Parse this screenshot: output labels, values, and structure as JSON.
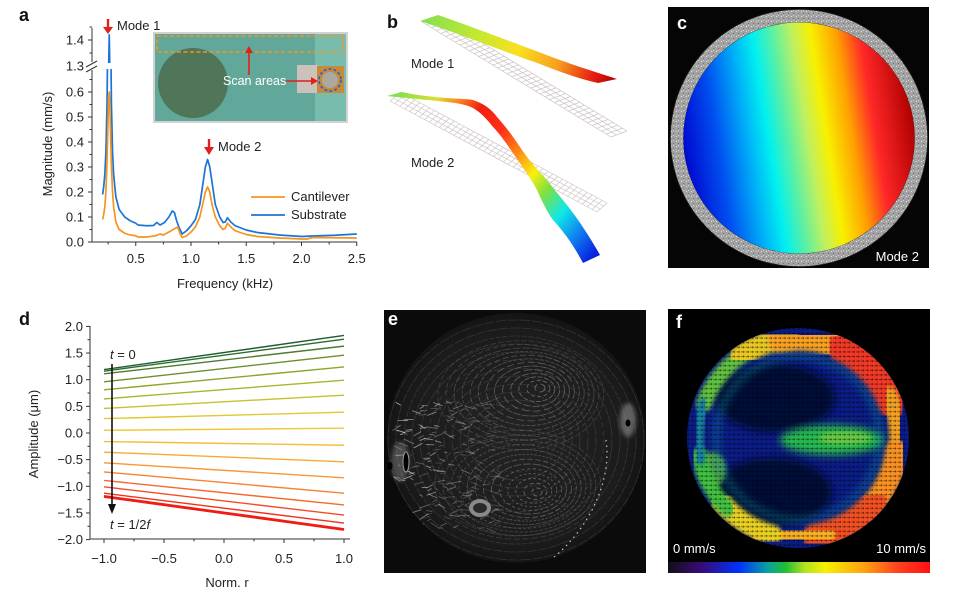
{
  "panels": {
    "a": {
      "label": "a",
      "mode1": "Mode 1",
      "mode2": "Mode 2",
      "inset_label": "Scan areas"
    },
    "b": {
      "label": "b",
      "mode1": "Mode 1",
      "mode2": "Mode 2"
    },
    "c": {
      "label": "c",
      "mode": "Mode 2"
    },
    "d": {
      "label": "d",
      "t_start": {
        "var": "t",
        "rest": " = 0"
      },
      "t_end": {
        "var": "t",
        "mid": " = 1/2",
        "var2": "f"
      }
    },
    "e": {
      "label": "e"
    },
    "f": {
      "label": "f",
      "colorbar_min": "0 mm/s",
      "colorbar_max": "10 mm/s",
      "colorbar_range_mm_s": [
        0,
        10
      ]
    }
  },
  "colors": {
    "cantilever": "#f7941d",
    "substrate": "#1b75d8",
    "annotation_arrow": "#e0201a",
    "colormap": [
      "#101018",
      "#3a0a70",
      "#0030ff",
      "#0aa0a0",
      "#20c030",
      "#b0e020",
      "#f8f000",
      "#ffa010",
      "#ff4020",
      "#ff1010"
    ]
  },
  "chart_data": [
    {
      "id": "a",
      "type": "line",
      "title": "",
      "xlabel": "Frequency (kHz)",
      "ylabel": "Magnitude (mm/s)",
      "xlim": [
        0.1,
        2.5
      ],
      "y_axis_break": true,
      "ylim_lower": [
        0.0,
        0.69
      ],
      "ylim_upper": [
        1.31,
        1.45
      ],
      "xticks": [
        0.5,
        1.0,
        1.5,
        2.0,
        2.5
      ],
      "xtick_labels": [
        "0.5",
        "1.0",
        "1.5",
        "2.0",
        "2.5"
      ],
      "yticks_lower": [
        0.0,
        0.1,
        0.2,
        0.3,
        0.4,
        0.5,
        0.6
      ],
      "ytick_labels_lower": [
        "0.0",
        "0.1",
        "0.2",
        "0.3",
        "0.4",
        "0.5",
        "0.6"
      ],
      "yticks_upper": [
        1.3,
        1.4
      ],
      "ytick_labels_upper": [
        "1.3",
        "1.4"
      ],
      "grid": false,
      "legend": {
        "position": "right",
        "entries": [
          "Cantilever",
          "Substrate"
        ]
      },
      "annotations": [
        {
          "text": "Mode 1",
          "x": 0.26
        },
        {
          "text": "Mode 2",
          "x": 1.15
        }
      ],
      "series": [
        {
          "name": "Substrate",
          "color": "#1b75d8",
          "x": [
            0.2,
            0.21,
            0.22,
            0.23,
            0.24,
            0.245,
            0.25,
            0.255,
            0.26,
            0.265,
            0.27,
            0.275,
            0.28,
            0.29,
            0.3,
            0.32,
            0.35,
            0.4,
            0.45,
            0.5,
            0.52,
            0.6,
            0.66,
            0.69,
            0.72,
            0.76,
            0.8,
            0.83,
            0.85,
            0.87,
            0.89,
            0.92,
            0.96,
            1.0,
            1.04,
            1.08,
            1.11,
            1.13,
            1.15,
            1.17,
            1.19,
            1.22,
            1.26,
            1.29,
            1.31,
            1.33,
            1.36,
            1.4,
            1.5,
            1.6,
            1.8,
            2.0,
            2.1,
            2.3,
            2.5
          ],
          "y": [
            0.19,
            0.22,
            0.27,
            0.36,
            0.55,
            0.75,
            1.0,
            1.3,
            1.42,
            1.3,
            1.0,
            0.75,
            0.55,
            0.36,
            0.27,
            0.18,
            0.13,
            0.1,
            0.085,
            0.075,
            0.068,
            0.065,
            0.066,
            0.078,
            0.068,
            0.078,
            0.1,
            0.124,
            0.118,
            0.085,
            0.06,
            0.032,
            0.045,
            0.065,
            0.09,
            0.15,
            0.24,
            0.3,
            0.33,
            0.3,
            0.24,
            0.15,
            0.1,
            0.078,
            0.08,
            0.097,
            0.08,
            0.065,
            0.048,
            0.038,
            0.028,
            0.022,
            0.024,
            0.027,
            0.032
          ]
        },
        {
          "name": "Cantilever",
          "color": "#f7941d",
          "x": [
            0.2,
            0.21,
            0.22,
            0.23,
            0.24,
            0.25,
            0.255,
            0.26,
            0.265,
            0.27,
            0.28,
            0.29,
            0.3,
            0.32,
            0.35,
            0.4,
            0.45,
            0.5,
            0.52,
            0.6,
            0.68,
            0.72,
            0.75,
            0.8,
            0.84,
            0.86,
            0.88,
            0.9,
            0.92,
            0.96,
            1.0,
            1.04,
            1.08,
            1.11,
            1.13,
            1.15,
            1.17,
            1.19,
            1.22,
            1.26,
            1.29,
            1.31,
            1.33,
            1.36,
            1.4,
            1.5,
            1.6,
            1.8,
            2.0,
            2.05,
            2.1,
            2.3,
            2.5
          ],
          "y": [
            0.09,
            0.11,
            0.14,
            0.2,
            0.32,
            0.5,
            0.58,
            0.6,
            0.56,
            0.46,
            0.3,
            0.2,
            0.14,
            0.08,
            0.05,
            0.035,
            0.028,
            0.025,
            0.02,
            0.02,
            0.025,
            0.032,
            0.028,
            0.04,
            0.05,
            0.055,
            0.06,
            0.035,
            0.018,
            0.024,
            0.04,
            0.06,
            0.1,
            0.16,
            0.2,
            0.22,
            0.2,
            0.15,
            0.1,
            0.065,
            0.05,
            0.055,
            0.075,
            0.06,
            0.045,
            0.03,
            0.022,
            0.016,
            0.012,
            0.012,
            0.018,
            0.017,
            0.016
          ]
        }
      ]
    },
    {
      "id": "d",
      "type": "line",
      "title": "",
      "xlabel": "Norm. r",
      "ylabel": "Amplitude (μm)",
      "xlim": [
        -1.12,
        1.05
      ],
      "ylim": [
        -2.0,
        2.0
      ],
      "xticks": [
        -1.0,
        -0.5,
        0.0,
        0.5,
        1.0
      ],
      "xtick_labels": [
        "−1.0",
        "−0.5",
        "0.0",
        "0.5",
        "1.0"
      ],
      "yticks": [
        2.0,
        1.5,
        1.0,
        0.5,
        0.0,
        -0.5,
        -1.0,
        -1.5,
        -2.0
      ],
      "ytick_labels": [
        "2.0",
        "1.5",
        "1.0",
        "0.5",
        "0.0",
        "−0.5",
        "−1.0",
        "−1.5",
        "−2.0"
      ],
      "grid": false,
      "annotations": [
        {
          "text": "t = 0",
          "x": -0.93,
          "y": 1.45
        },
        {
          "text": "t = 1/2f",
          "x": -0.93,
          "y": -1.75
        }
      ],
      "series": [
        {
          "name": "t_step_0",
          "color": "#1f5c32",
          "x": [
            -1,
            1
          ],
          "y": [
            1.19,
            1.83
          ]
        },
        {
          "name": "t_step_1",
          "color": "#2e6b2e",
          "x": [
            -1,
            1
          ],
          "y": [
            1.16,
            1.76
          ]
        },
        {
          "name": "t_step_2",
          "color": "#4b7d2c",
          "x": [
            -1,
            1
          ],
          "y": [
            1.11,
            1.63
          ]
        },
        {
          "name": "t_step_3",
          "color": "#6d8f2a",
          "x": [
            -1,
            1
          ],
          "y": [
            0.96,
            1.46
          ]
        },
        {
          "name": "t_step_4",
          "color": "#8fa52a",
          "x": [
            -1,
            1
          ],
          "y": [
            0.81,
            1.24
          ]
        },
        {
          "name": "t_step_5",
          "color": "#a9b52c",
          "x": [
            -1,
            1
          ],
          "y": [
            0.64,
            0.99
          ]
        },
        {
          "name": "t_step_6",
          "color": "#c6c12e",
          "x": [
            -1,
            1
          ],
          "y": [
            0.46,
            0.71
          ]
        },
        {
          "name": "t_step_7",
          "color": "#e0c832",
          "x": [
            -1,
            1
          ],
          "y": [
            0.27,
            0.39
          ]
        },
        {
          "name": "t_step_8",
          "color": "#f0c83a",
          "x": [
            -1,
            1
          ],
          "y": [
            0.05,
            0.09
          ]
        },
        {
          "name": "t_step_9",
          "color": "#f6be36",
          "x": [
            -1,
            1
          ],
          "y": [
            -0.16,
            -0.23
          ]
        },
        {
          "name": "t_step_10",
          "color": "#f6ac34",
          "x": [
            -1,
            1
          ],
          "y": [
            -0.36,
            -0.54
          ]
        },
        {
          "name": "t_step_11",
          "color": "#f79838",
          "x": [
            -1,
            1
          ],
          "y": [
            -0.56,
            -0.84
          ]
        },
        {
          "name": "t_step_12",
          "color": "#f88236",
          "x": [
            -1,
            1
          ],
          "y": [
            -0.73,
            -1.13
          ]
        },
        {
          "name": "t_step_13",
          "color": "#f8692e",
          "x": [
            -1,
            1
          ],
          "y": [
            -0.89,
            -1.35
          ]
        },
        {
          "name": "t_step_14",
          "color": "#f64c26",
          "x": [
            -1,
            1
          ],
          "y": [
            -1.01,
            -1.54
          ]
        },
        {
          "name": "t_step_15",
          "color": "#f2321c",
          "x": [
            -1,
            1
          ],
          "y": [
            -1.13,
            -1.69
          ]
        },
        {
          "name": "t_step_16",
          "color": "#f01c14",
          "x": [
            -1,
            1
          ],
          "y": [
            -1.19,
            -1.81
          ]
        }
      ]
    }
  ]
}
